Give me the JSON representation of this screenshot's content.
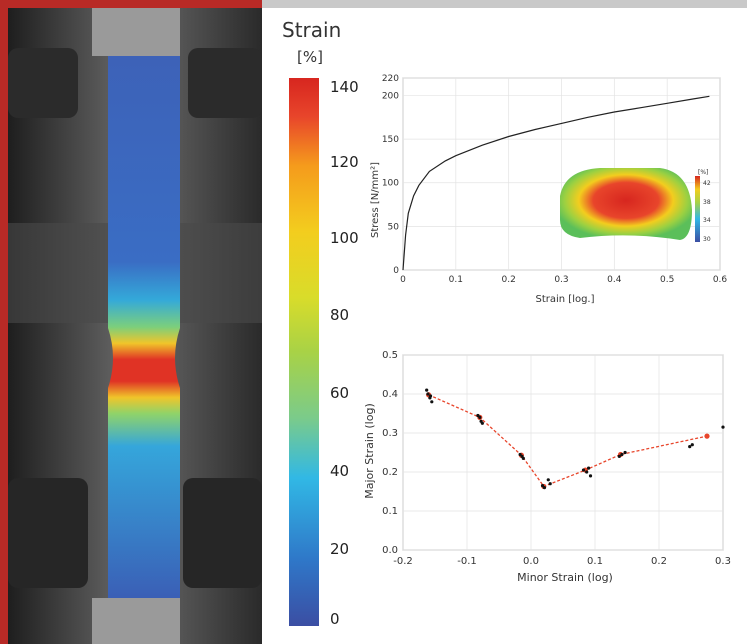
{
  "colorbar": {
    "title": "Strain",
    "unit": "[%]",
    "ticks": [
      "140",
      "120",
      "100",
      "80",
      "60",
      "40",
      "20",
      "0"
    ]
  },
  "colors": {
    "frame_red": "#b82a26",
    "curve": "#222222",
    "fld_line": "#e8452b",
    "points": "#111111"
  },
  "chart_data": [
    {
      "type": "line",
      "xlabel": "Strain [log.]",
      "ylabel": "Stress [N/mm²]",
      "xlim": [
        0,
        0.6
      ],
      "ylim": [
        0,
        220
      ],
      "xticks": [
        "0",
        "0.1",
        "0.2",
        "0.3",
        "0.4",
        "0.5",
        "0.6"
      ],
      "yticks": [
        "0",
        "50",
        "100",
        "150",
        "200",
        "220"
      ],
      "grid": true,
      "series": [
        {
          "x": [
            0,
            0.005,
            0.01,
            0.02,
            0.03,
            0.05,
            0.08,
            0.1,
            0.15,
            0.2,
            0.25,
            0.3,
            0.35,
            0.4,
            0.45,
            0.5,
            0.55,
            0.58
          ],
          "y": [
            0,
            40,
            65,
            85,
            97,
            113,
            125,
            131,
            143,
            153,
            161,
            168,
            175,
            181,
            186,
            191,
            196,
            199
          ]
        }
      ],
      "inset": {
        "type": "heatmap",
        "unit": "[%]",
        "ticks": [
          "42",
          "38",
          "34",
          "30"
        ]
      }
    },
    {
      "type": "scatter",
      "xlabel": "Minor Strain (log)",
      "ylabel": "Major Strain (log)",
      "xlim": [
        -0.2,
        0.3
      ],
      "ylim": [
        0,
        0.5
      ],
      "xticks": [
        "-0.2",
        "-0.1",
        "0.0",
        "0.1",
        "0.2",
        "0.3"
      ],
      "yticks": [
        "0.0",
        "0.1",
        "0.2",
        "0.3",
        "0.4",
        "0.5"
      ],
      "grid": true,
      "series": [
        {
          "type": "line",
          "x": [
            -0.16,
            -0.08,
            -0.015,
            0.02,
            0.085,
            0.14,
            0.275
          ],
          "y": [
            0.398,
            0.34,
            0.243,
            0.163,
            0.205,
            0.245,
            0.292
          ]
        },
        {
          "type": "points",
          "x": [
            -0.163,
            -0.161,
            -0.158,
            -0.157,
            -0.155,
            -0.083,
            -0.08,
            -0.078,
            -0.076,
            -0.017,
            -0.014,
            -0.012,
            0.018,
            0.021,
            0.027,
            0.03,
            0.082,
            0.087,
            0.09,
            0.093,
            0.138,
            0.142,
            0.147,
            0.248,
            0.252,
            0.3
          ],
          "y": [
            0.41,
            0.4,
            0.39,
            0.395,
            0.38,
            0.345,
            0.34,
            0.33,
            0.325,
            0.245,
            0.24,
            0.235,
            0.165,
            0.16,
            0.18,
            0.17,
            0.205,
            0.2,
            0.21,
            0.19,
            0.24,
            0.245,
            0.25,
            0.265,
            0.27,
            0.315
          ]
        }
      ]
    }
  ]
}
